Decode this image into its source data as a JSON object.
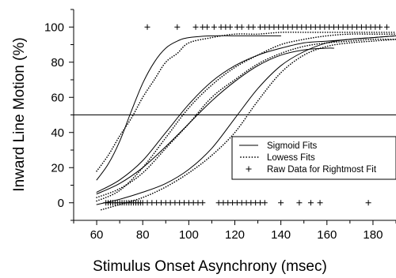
{
  "chart_data": {
    "type": "line",
    "xlabel": "Stimulus Onset Asynchrony (msec)",
    "ylabel": "Inward Line Motion (%)",
    "xlim": [
      50,
      190
    ],
    "ylim": [
      -10,
      110
    ],
    "xticks": [
      60,
      80,
      100,
      120,
      140,
      160,
      180
    ],
    "yticks": [
      0,
      20,
      40,
      60,
      80,
      100
    ],
    "reference_line_y": 50,
    "grid": false,
    "legend": {
      "position": "right",
      "entries": [
        {
          "marker": "line",
          "label": "Sigmoid Fits"
        },
        {
          "marker": "dots",
          "label": "Lowess Fits"
        },
        {
          "marker": "plus",
          "label": "Raw Data for Rightmost Fit"
        }
      ]
    },
    "series": [
      {
        "kind": "sigmoid",
        "points": [
          [
            60,
            13
          ],
          [
            65,
            22
          ],
          [
            70,
            35
          ],
          [
            75,
            52
          ],
          [
            80,
            68
          ],
          [
            85,
            80
          ],
          [
            90,
            88
          ],
          [
            95,
            92
          ],
          [
            100,
            94
          ],
          [
            110,
            95
          ],
          [
            120,
            95
          ],
          [
            130,
            95
          ],
          [
            140,
            95
          ]
        ]
      },
      {
        "kind": "sigmoid",
        "points": [
          [
            60,
            6
          ],
          [
            70,
            13
          ],
          [
            80,
            24
          ],
          [
            90,
            40
          ],
          [
            100,
            56
          ],
          [
            110,
            69
          ],
          [
            120,
            78
          ],
          [
            130,
            84
          ],
          [
            140,
            88
          ],
          [
            150,
            91
          ],
          [
            160,
            92
          ],
          [
            170,
            93
          ],
          [
            180,
            94
          ],
          [
            190,
            95
          ]
        ]
      },
      {
        "kind": "sigmoid",
        "points": [
          [
            60,
            5
          ],
          [
            70,
            11
          ],
          [
            80,
            20
          ],
          [
            90,
            32
          ],
          [
            100,
            45
          ],
          [
            110,
            58
          ],
          [
            120,
            69
          ],
          [
            130,
            78
          ],
          [
            140,
            84
          ],
          [
            150,
            87
          ],
          [
            160,
            88
          ],
          [
            163,
            88
          ]
        ]
      },
      {
        "kind": "sigmoid",
        "points": [
          [
            60,
            -1
          ],
          [
            70,
            2
          ],
          [
            80,
            6
          ],
          [
            90,
            11
          ],
          [
            100,
            19
          ],
          [
            110,
            31
          ],
          [
            120,
            48
          ],
          [
            130,
            65
          ],
          [
            140,
            78
          ],
          [
            150,
            86
          ],
          [
            160,
            91
          ],
          [
            170,
            93
          ],
          [
            180,
            94
          ],
          [
            190,
            95
          ]
        ]
      },
      {
        "kind": "lowess",
        "points": [
          [
            60,
            18
          ],
          [
            65,
            27
          ],
          [
            70,
            38
          ],
          [
            75,
            48
          ],
          [
            80,
            60
          ],
          [
            85,
            70
          ],
          [
            90,
            80
          ],
          [
            95,
            85
          ],
          [
            100,
            91
          ],
          [
            110,
            94
          ],
          [
            120,
            96
          ],
          [
            130,
            96
          ],
          [
            140,
            97
          ],
          [
            150,
            97
          ],
          [
            160,
            97
          ],
          [
            170,
            97
          ],
          [
            180,
            97
          ],
          [
            190,
            97
          ]
        ]
      },
      {
        "kind": "lowess",
        "points": [
          [
            60,
            1
          ],
          [
            70,
            7
          ],
          [
            80,
            20
          ],
          [
            90,
            37
          ],
          [
            100,
            54
          ],
          [
            110,
            67
          ],
          [
            120,
            77
          ],
          [
            130,
            84
          ],
          [
            140,
            90
          ],
          [
            150,
            93
          ],
          [
            160,
            95
          ],
          [
            170,
            96
          ],
          [
            180,
            96
          ],
          [
            190,
            96
          ]
        ]
      },
      {
        "kind": "lowess",
        "points": [
          [
            60,
            3
          ],
          [
            70,
            8
          ],
          [
            80,
            17
          ],
          [
            90,
            31
          ],
          [
            100,
            45
          ],
          [
            110,
            60
          ],
          [
            120,
            70
          ],
          [
            130,
            79
          ],
          [
            140,
            85
          ],
          [
            150,
            89
          ],
          [
            160,
            91
          ],
          [
            170,
            92
          ],
          [
            180,
            93
          ],
          [
            190,
            93
          ]
        ]
      },
      {
        "kind": "lowess",
        "points": [
          [
            62,
            -4
          ],
          [
            70,
            -1
          ],
          [
            80,
            3
          ],
          [
            90,
            9
          ],
          [
            100,
            17
          ],
          [
            110,
            27
          ],
          [
            120,
            40
          ],
          [
            130,
            58
          ],
          [
            140,
            74
          ],
          [
            150,
            84
          ],
          [
            160,
            89
          ],
          [
            170,
            91
          ],
          [
            180,
            92
          ],
          [
            190,
            93
          ]
        ]
      }
    ],
    "raw_data": {
      "y100_x": [
        82,
        95,
        103,
        106,
        108,
        111,
        114,
        116,
        118,
        121,
        123,
        126,
        128,
        131,
        133,
        135,
        137,
        139,
        141,
        143,
        145,
        147,
        149,
        151,
        153,
        155,
        157,
        159,
        161,
        163,
        165,
        167,
        169,
        171,
        173,
        175,
        177,
        179,
        181,
        183,
        186
      ],
      "y0_x": [
        64,
        65,
        66,
        67,
        68,
        69,
        70,
        71,
        72,
        73,
        74,
        75,
        76,
        77,
        78,
        79,
        80,
        82,
        84,
        86,
        88,
        90,
        92,
        94,
        96,
        98,
        100,
        102,
        104,
        106,
        113,
        115,
        117,
        119,
        121,
        123,
        125,
        127,
        129,
        131,
        133,
        140,
        148,
        153,
        157,
        178
      ]
    }
  }
}
